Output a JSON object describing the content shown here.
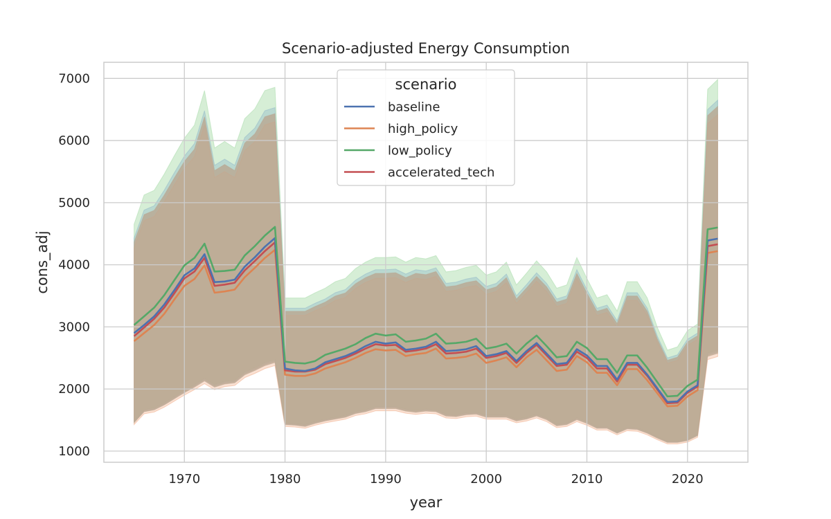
{
  "chart_data": {
    "type": "line",
    "title": "Scenario-adjusted Energy Consumption",
    "xlabel": "year",
    "ylabel": "cons_adj",
    "xlim": [
      1962,
      2026
    ],
    "ylim": [
      820,
      7260
    ],
    "xticks": [
      1970,
      1980,
      1990,
      2000,
      2010,
      2020
    ],
    "yticks": [
      1000,
      2000,
      3000,
      4000,
      5000,
      6000,
      7000
    ],
    "grid": true,
    "legend": {
      "title": "scenario",
      "placement": "upper-center"
    },
    "x": [
      1965,
      1966,
      1967,
      1968,
      1969,
      1970,
      1971,
      1972,
      1973,
      1974,
      1975,
      1976,
      1977,
      1978,
      1979,
      1980,
      1981,
      1982,
      1983,
      1984,
      1985,
      1986,
      1987,
      1988,
      1989,
      1990,
      1991,
      1992,
      1993,
      1994,
      1995,
      1996,
      1997,
      1998,
      1999,
      2000,
      2001,
      2002,
      2003,
      2004,
      2005,
      2006,
      2007,
      2008,
      2009,
      2010,
      2011,
      2012,
      2013,
      2014,
      2015,
      2016,
      2017,
      2018,
      2019,
      2020,
      2021,
      2022,
      2023
    ],
    "band": {
      "baseline_upper": [
        4430,
        4880,
        4950,
        5200,
        5480,
        5750,
        5950,
        6480,
        5600,
        5700,
        5600,
        6050,
        6200,
        6480,
        6530,
        3300,
        3300,
        3300,
        3380,
        3450,
        3550,
        3600,
        3750,
        3850,
        3920,
        3920,
        3930,
        3850,
        3920,
        3900,
        3950,
        3700,
        3720,
        3770,
        3800,
        3650,
        3700,
        3850,
        3500,
        3680,
        3870,
        3700,
        3450,
        3500,
        3920,
        3600,
        3300,
        3350,
        3100,
        3550,
        3550,
        3300,
        2850,
        2500,
        2550,
        2800,
        2900,
        6500,
        6650
      ],
      "lower": [
        1470,
        1650,
        1680,
        1760,
        1860,
        1960,
        2050,
        2150,
        2050,
        2100,
        2120,
        2250,
        2320,
        2400,
        2450,
        1440,
        1430,
        1410,
        1460,
        1500,
        1530,
        1560,
        1620,
        1650,
        1700,
        1700,
        1700,
        1660,
        1640,
        1660,
        1650,
        1580,
        1570,
        1600,
        1610,
        1560,
        1560,
        1560,
        1500,
        1530,
        1580,
        1520,
        1420,
        1440,
        1520,
        1460,
        1380,
        1380,
        1300,
        1370,
        1360,
        1300,
        1220,
        1150,
        1150,
        1180,
        1260,
        2550,
        2600
      ]
    },
    "series": [
      {
        "name": "baseline",
        "color": "#4c72b0",
        "values": [
          2900,
          3030,
          3170,
          3360,
          3590,
          3830,
          3940,
          4170,
          3720,
          3730,
          3760,
          3970,
          4120,
          4290,
          4430,
          2330,
          2300,
          2290,
          2330,
          2430,
          2480,
          2530,
          2600,
          2690,
          2760,
          2730,
          2750,
          2630,
          2650,
          2680,
          2760,
          2610,
          2620,
          2640,
          2690,
          2530,
          2560,
          2610,
          2450,
          2610,
          2740,
          2570,
          2400,
          2420,
          2640,
          2540,
          2370,
          2370,
          2150,
          2420,
          2420,
          2230,
          2010,
          1790,
          1800,
          1960,
          2060,
          4390,
          4420
        ]
      },
      {
        "name": "high_policy",
        "color": "#dd8452",
        "values": [
          2770,
          2900,
          3030,
          3210,
          3440,
          3660,
          3770,
          3990,
          3550,
          3570,
          3600,
          3800,
          3950,
          4110,
          4240,
          2230,
          2210,
          2210,
          2250,
          2330,
          2380,
          2430,
          2500,
          2580,
          2640,
          2620,
          2630,
          2530,
          2560,
          2580,
          2650,
          2490,
          2500,
          2520,
          2570,
          2420,
          2460,
          2510,
          2350,
          2510,
          2630,
          2460,
          2290,
          2310,
          2530,
          2430,
          2260,
          2260,
          2060,
          2320,
          2320,
          2140,
          1930,
          1720,
          1730,
          1880,
          1980,
          4190,
          4220
        ]
      },
      {
        "name": "low_policy",
        "color": "#55a868",
        "values": [
          3030,
          3170,
          3310,
          3510,
          3750,
          3990,
          4110,
          4340,
          3890,
          3900,
          3920,
          4150,
          4300,
          4470,
          4610,
          2440,
          2420,
          2410,
          2450,
          2550,
          2600,
          2650,
          2720,
          2820,
          2890,
          2860,
          2880,
          2760,
          2780,
          2810,
          2890,
          2730,
          2740,
          2760,
          2810,
          2650,
          2680,
          2730,
          2570,
          2730,
          2860,
          2690,
          2510,
          2530,
          2760,
          2660,
          2480,
          2480,
          2260,
          2540,
          2540,
          2340,
          2110,
          1880,
          1890,
          2050,
          2150,
          4570,
          4600
        ]
      },
      {
        "name": "accelerated_tech",
        "color": "#c44e52",
        "values": [
          2850,
          2990,
          3130,
          3310,
          3540,
          3780,
          3890,
          4110,
          3660,
          3680,
          3710,
          3910,
          4060,
          4220,
          4360,
          2300,
          2280,
          2280,
          2310,
          2400,
          2450,
          2500,
          2570,
          2650,
          2720,
          2700,
          2710,
          2600,
          2620,
          2650,
          2720,
          2570,
          2580,
          2600,
          2650,
          2500,
          2530,
          2580,
          2420,
          2580,
          2710,
          2540,
          2370,
          2390,
          2600,
          2500,
          2330,
          2330,
          2120,
          2390,
          2390,
          2210,
          1990,
          1770,
          1780,
          1940,
          2040,
          4300,
          4330
        ]
      }
    ],
    "band_colors": {
      "shade_a": "#a3d9a5",
      "shade_b": "#b9a48e"
    }
  }
}
